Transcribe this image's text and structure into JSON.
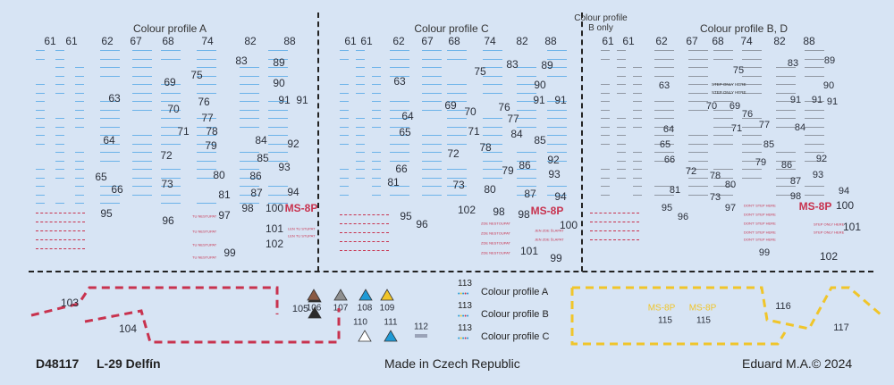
{
  "sheet": {
    "code": "D48117",
    "title": "L-29 Delfín",
    "origin": "Made in Czech Republic",
    "copyright": "Eduard M.A.© 2024"
  },
  "colors": {
    "background": "#d7e4f4",
    "stencil_blue": "#4aa3e6",
    "stencil_grey": "#7a7f88",
    "stencil_red": "#c8324e",
    "outline_yellow": "#f0c52a"
  },
  "panels": [
    {
      "header": "Colour profile A",
      "numbers": [
        "61",
        "61",
        "62",
        "67",
        "68",
        "74",
        "82",
        "88",
        "83",
        "89",
        "75",
        "90",
        "69",
        "63",
        "91",
        "91",
        "70",
        "76",
        "77",
        "71",
        "78",
        "79",
        "64",
        "84",
        "92",
        "72",
        "85",
        "93",
        "65",
        "66",
        "80",
        "73",
        "86",
        "81",
        "87",
        "94",
        "95",
        "98",
        "100",
        "MS-8P",
        "97",
        "96",
        "101",
        "102",
        "99"
      ],
      "red_stencils": [
        "TU NESTUPAT",
        "TU NESTUPAT",
        "TU NESTUPAT",
        "TU NESTUPAT",
        "LEN TU STUPAT",
        "LEN TU STUPAT"
      ]
    },
    {
      "header": "Colour profile C",
      "numbers": [
        "61",
        "61",
        "62",
        "67",
        "68",
        "74",
        "82",
        "88",
        "83",
        "89",
        "75",
        "90",
        "63",
        "69",
        "70",
        "76",
        "91",
        "91",
        "64",
        "77",
        "65",
        "71",
        "84",
        "78",
        "85",
        "72",
        "79",
        "86",
        "92",
        "66",
        "93",
        "81",
        "73",
        "80",
        "87",
        "94",
        "95",
        "102",
        "98",
        "98",
        "MS-8P",
        "100",
        "96",
        "101",
        "99"
      ],
      "red_stencils": [
        "ZDE NESTOUPAT",
        "ZDE NESTOUPAT",
        "ZDE NESTOUPAT",
        "ZDE NESTOUPAT",
        "JEN ZDE ŠLAPAT",
        "JEN ZDE ŠLAPAT"
      ]
    },
    {
      "header": "Colour profile B, D",
      "subheader": "Colour profile B only",
      "numbers": [
        "61",
        "61",
        "62",
        "67",
        "68",
        "74",
        "82",
        "88",
        "83",
        "89",
        "75",
        "90",
        "63",
        "70",
        "69",
        "91",
        "91",
        "91",
        "76",
        "77",
        "71",
        "64",
        "84",
        "65",
        "66",
        "85",
        "79",
        "72",
        "86",
        "92",
        "93",
        "78",
        "87",
        "80",
        "73",
        "81",
        "94",
        "98",
        "97",
        "MS-8P",
        "100",
        "95",
        "96",
        "101",
        "99",
        "102"
      ],
      "grey_stencils": [
        "STEP ONLY HERE",
        "STEP ONLY HERE"
      ],
      "red_stencils": [
        "DON'T STEP HERE",
        "DON'T STEP HERE",
        "DON'T STEP HERE",
        "DON'T STEP HERE",
        "DON'T STEP HERE",
        "STEP ONLY HERE",
        "STEP ONLY HERE"
      ]
    }
  ],
  "bottom": {
    "outline_numbers": [
      "103",
      "104"
    ],
    "triangles": [
      {
        "label": "105",
        "color": "#2b2b2b"
      },
      {
        "label": "106",
        "color": "#8a5a44"
      },
      {
        "label": "107",
        "color": "#8f8f8f"
      },
      {
        "label": "108",
        "color": "#1e9ad6"
      },
      {
        "label": "109",
        "color": "#f0c52a"
      },
      {
        "label": "110",
        "color": "#ffffff"
      },
      {
        "label": "111",
        "color": "#1e9ad6"
      }
    ],
    "strip_label": "112",
    "profiles": [
      {
        "number": "113",
        "label": "Colour profile A"
      },
      {
        "number": "113",
        "label": "Colour profile B"
      },
      {
        "number": "113",
        "label": "Colour profile C"
      }
    ],
    "yellow_codes": [
      "MS-8P",
      "MS-8P"
    ],
    "yellow_numbers": [
      "115",
      "115"
    ],
    "right_numbers": [
      "116",
      "117"
    ]
  }
}
